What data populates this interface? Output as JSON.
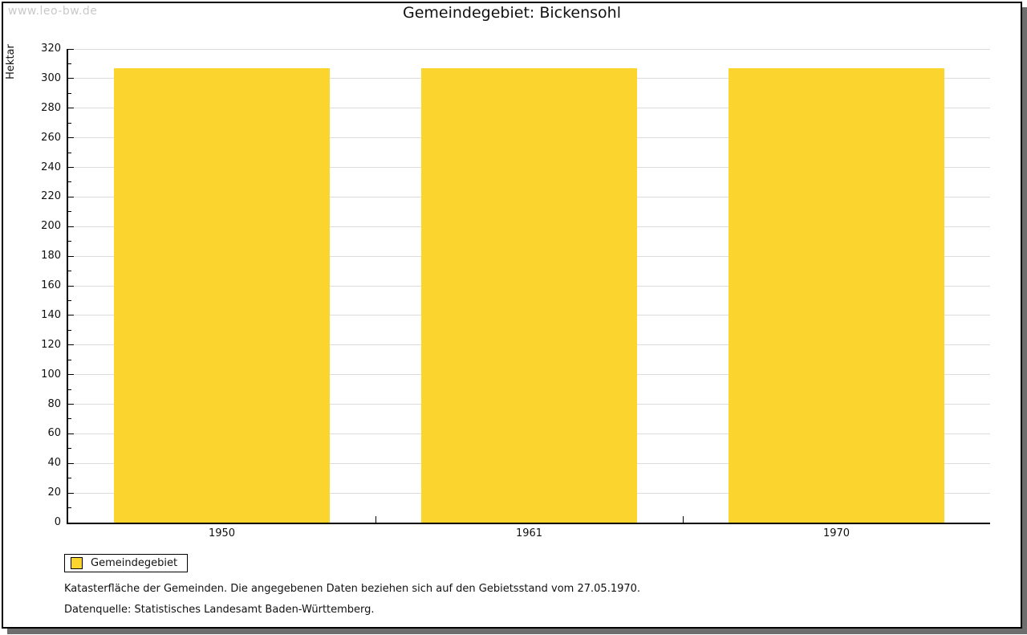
{
  "watermark": {
    "text": "www.leo-bw.de"
  },
  "chart_data": {
    "type": "bar",
    "title": "Gemeindegebiet: Bickensohl",
    "categories": [
      "1950",
      "1961",
      "1970"
    ],
    "values": [
      307,
      307,
      307
    ],
    "series_name": "Gemeindegebiet",
    "xlabel": "",
    "ylabel": "Hektar",
    "ylim": [
      0,
      320
    ],
    "ytick_major": 20,
    "ytick_minor": 10,
    "bar_color": "#fcd42e",
    "gridline_color": "#dddddd",
    "grid": "horizontal-major",
    "legend_position": "bottom-left",
    "bar_width_fraction": 0.7
  },
  "footer": {
    "line1": "Katasterfläche der Gemeinden. Die angegebenen Daten beziehen sich auf den Gebietsstand vom 27.05.1970.",
    "line2": "Datenquelle: Statistisches Landesamt Baden-Württemberg."
  }
}
